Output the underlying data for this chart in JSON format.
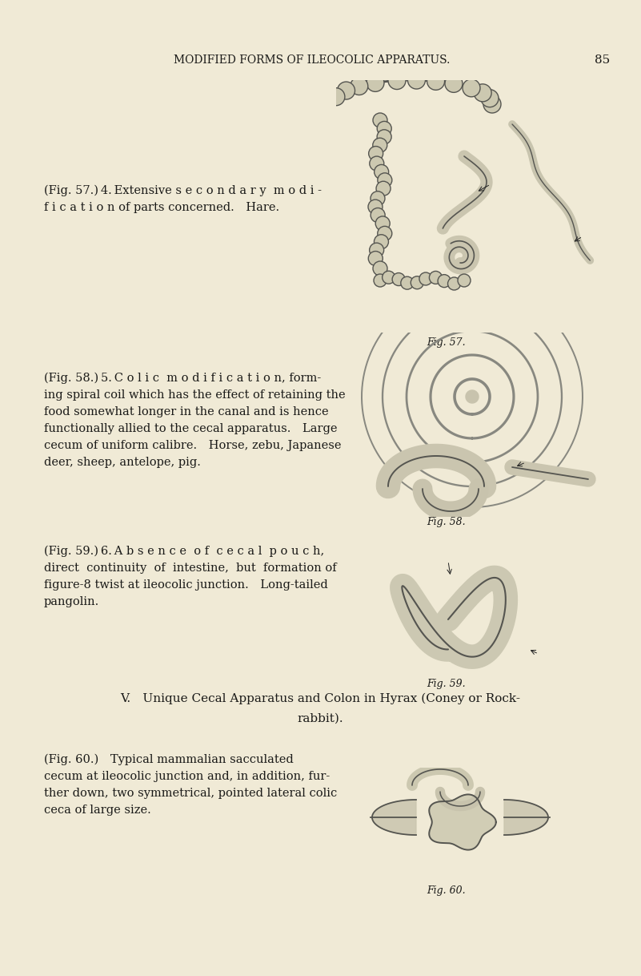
{
  "bg": "#f0ead6",
  "text_color": "#1a1a18",
  "header": "MODIFIED FORMS OF ILEOCOLIC APPARATUS.",
  "page_num": "85",
  "block1_lines": [
    "(Fig. 57.) 4. Extensive s e c o n d a r y  m o d i -",
    "f i c a t i o n of parts concerned. Hare."
  ],
  "block2_lines": [
    "(Fig. 58.) 5. C o l i c  m o d i f i c a t i o n, form-",
    "ing spiral coil which has the effect of retaining the",
    "food somewhat longer in the canal and is hence",
    "functionally allied to the cecal apparatus. Large",
    "cecum of uniform calibre. Horse, zebu, Japanese",
    "deer, sheep, antelope, pig."
  ],
  "block3_lines": [
    "(Fig. 59.) 6. A b s e n c e  o f  c e c a l  p o u c h,",
    "direct  continuity  of  intestine,  but  formation of",
    "figure-8 twist at ileocolic junction. Long-tailed",
    "pangolin."
  ],
  "section_v_line1": "V. Unique Cecal Apparatus and Colon in Hyrax (Coney or Rock-",
  "section_v_line2": "rabbit).",
  "block4_lines": [
    "(Fig. 60.) Typical mammalian sacculated",
    "cecum at ileocolic junction and, in addition, fur-",
    "ther down, two symmetrical, pointed lateral colic",
    "ceca of large size."
  ],
  "fig57_label": "Fig. 57.",
  "fig58_label": "Fig. 58.",
  "fig59_label": "Fig. 59.",
  "fig60_label": "Fig. 60.",
  "line_color": "#555550",
  "fill_color": "#d0cbb5",
  "fill_color2": "#c8c3ad"
}
